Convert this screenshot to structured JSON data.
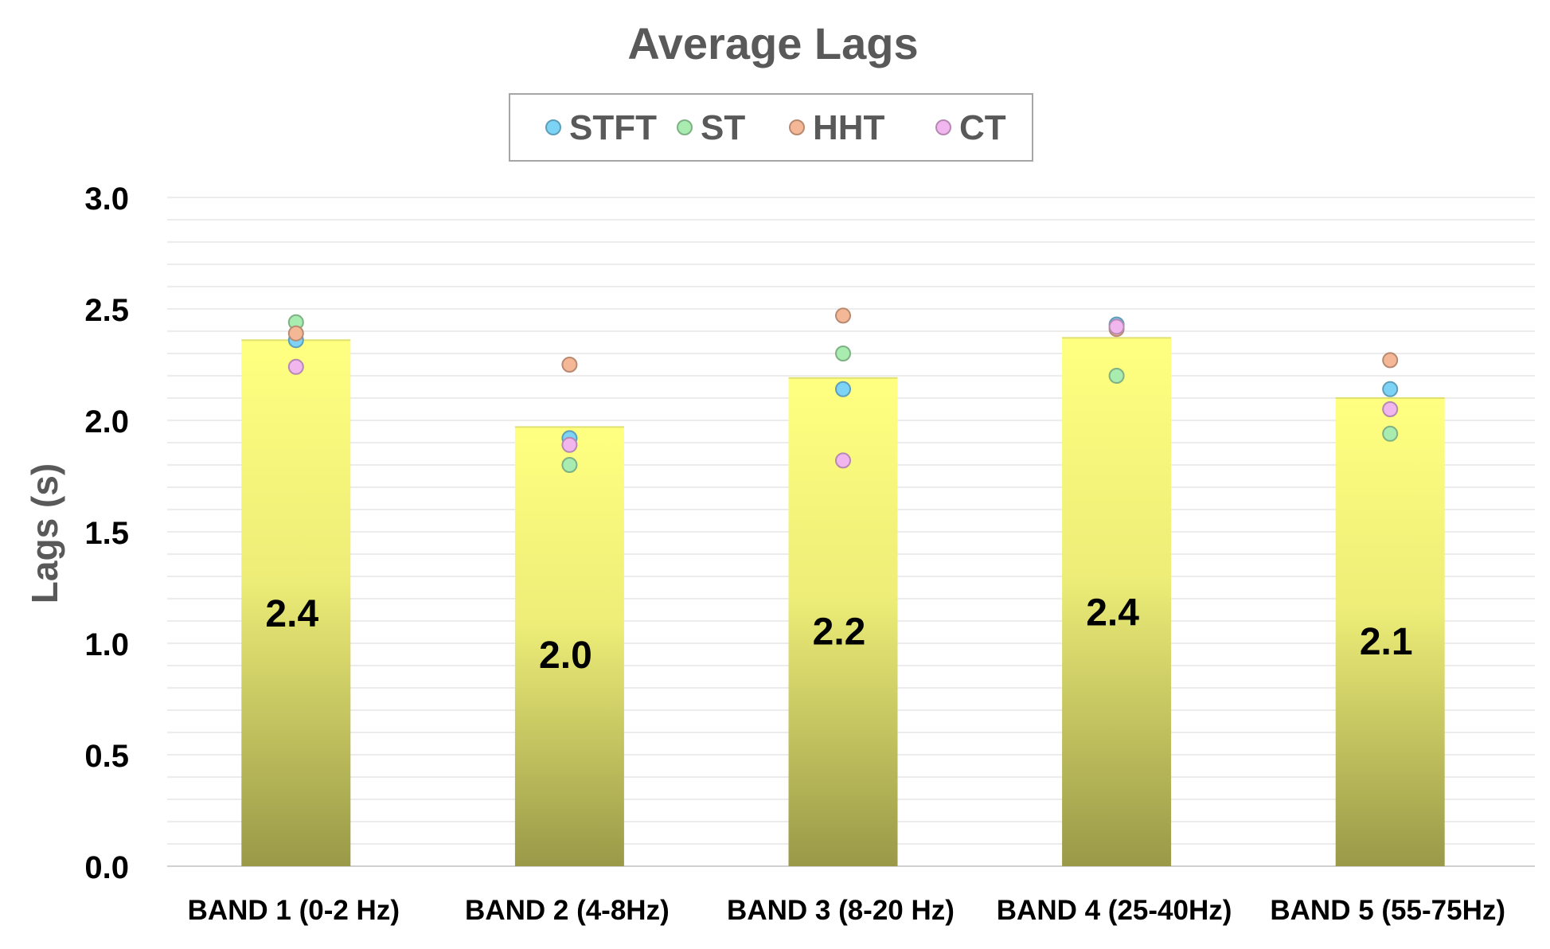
{
  "chart_data": {
    "type": "bar",
    "title": "Average Lags",
    "ylabel": "Lags (s)",
    "xlabel": "",
    "ylim": [
      0,
      3.0
    ],
    "yticks": [
      "0.0",
      "0.5",
      "1.0",
      "1.5",
      "2.0",
      "2.5",
      "3.0"
    ],
    "grid": true,
    "legend_position": "top-center",
    "categories": [
      "BAND 1 (0-2 Hz)",
      "BAND 2 (4-8Hz)",
      "BAND 3 (8-20 Hz)",
      "BAND 4 (25-40Hz)",
      "BAND 5 (55-75Hz)"
    ],
    "bar_values": [
      2.36,
      1.97,
      2.19,
      2.37,
      2.1
    ],
    "bar_labels": [
      "2.4",
      "2.0",
      "2.2",
      "2.4",
      "2.1"
    ],
    "bar_color_top": "#ffff80",
    "bar_color_bottom": "#999948",
    "series": [
      {
        "name": "STFT",
        "type": "scatter",
        "color": "#7dd3f5",
        "values": [
          2.36,
          1.92,
          2.14,
          2.43,
          2.14
        ]
      },
      {
        "name": "ST",
        "type": "scatter",
        "color": "#a8ecb0",
        "values": [
          2.44,
          1.8,
          2.3,
          2.2,
          1.94
        ]
      },
      {
        "name": "HHT",
        "type": "scatter",
        "color": "#f5b896",
        "values": [
          2.39,
          2.25,
          2.47,
          2.41,
          2.27
        ]
      },
      {
        "name": "CT",
        "type": "scatter",
        "color": "#f2b6ee",
        "values": [
          2.24,
          1.89,
          1.82,
          2.42,
          2.05
        ]
      }
    ]
  }
}
